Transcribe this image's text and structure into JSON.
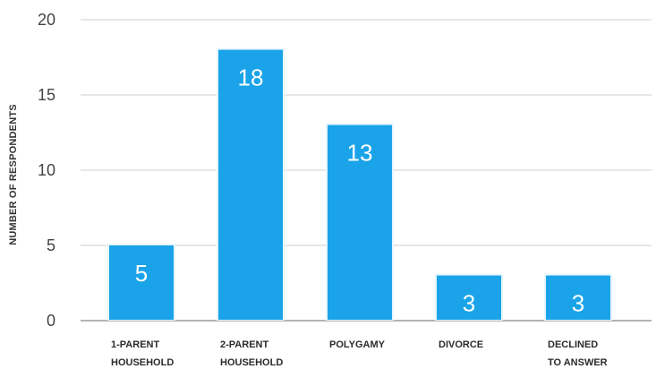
{
  "chart_data": {
    "type": "bar",
    "categories": [
      [
        "1-PARENT",
        "HOUSEHOLD"
      ],
      [
        "2-PARENT",
        "HOUSEHOLD"
      ],
      [
        "POLYGAMY"
      ],
      [
        "DIVORCE"
      ],
      [
        "DECLINED",
        "TO ANSWER"
      ]
    ],
    "values": [
      5,
      18,
      13,
      3,
      3
    ],
    "value_labels": [
      "5",
      "18",
      "13",
      "3",
      "3"
    ],
    "title": "",
    "xlabel": "",
    "ylabel": "NUMBER OF RESPONDENTS",
    "ylim": [
      0,
      20
    ],
    "yticks": [
      0,
      5,
      10,
      15,
      20
    ],
    "grid": true,
    "bar_color": "#1aa3e8",
    "grid_color": "#cfcfcf",
    "axis_color": "#9a9a9a"
  }
}
